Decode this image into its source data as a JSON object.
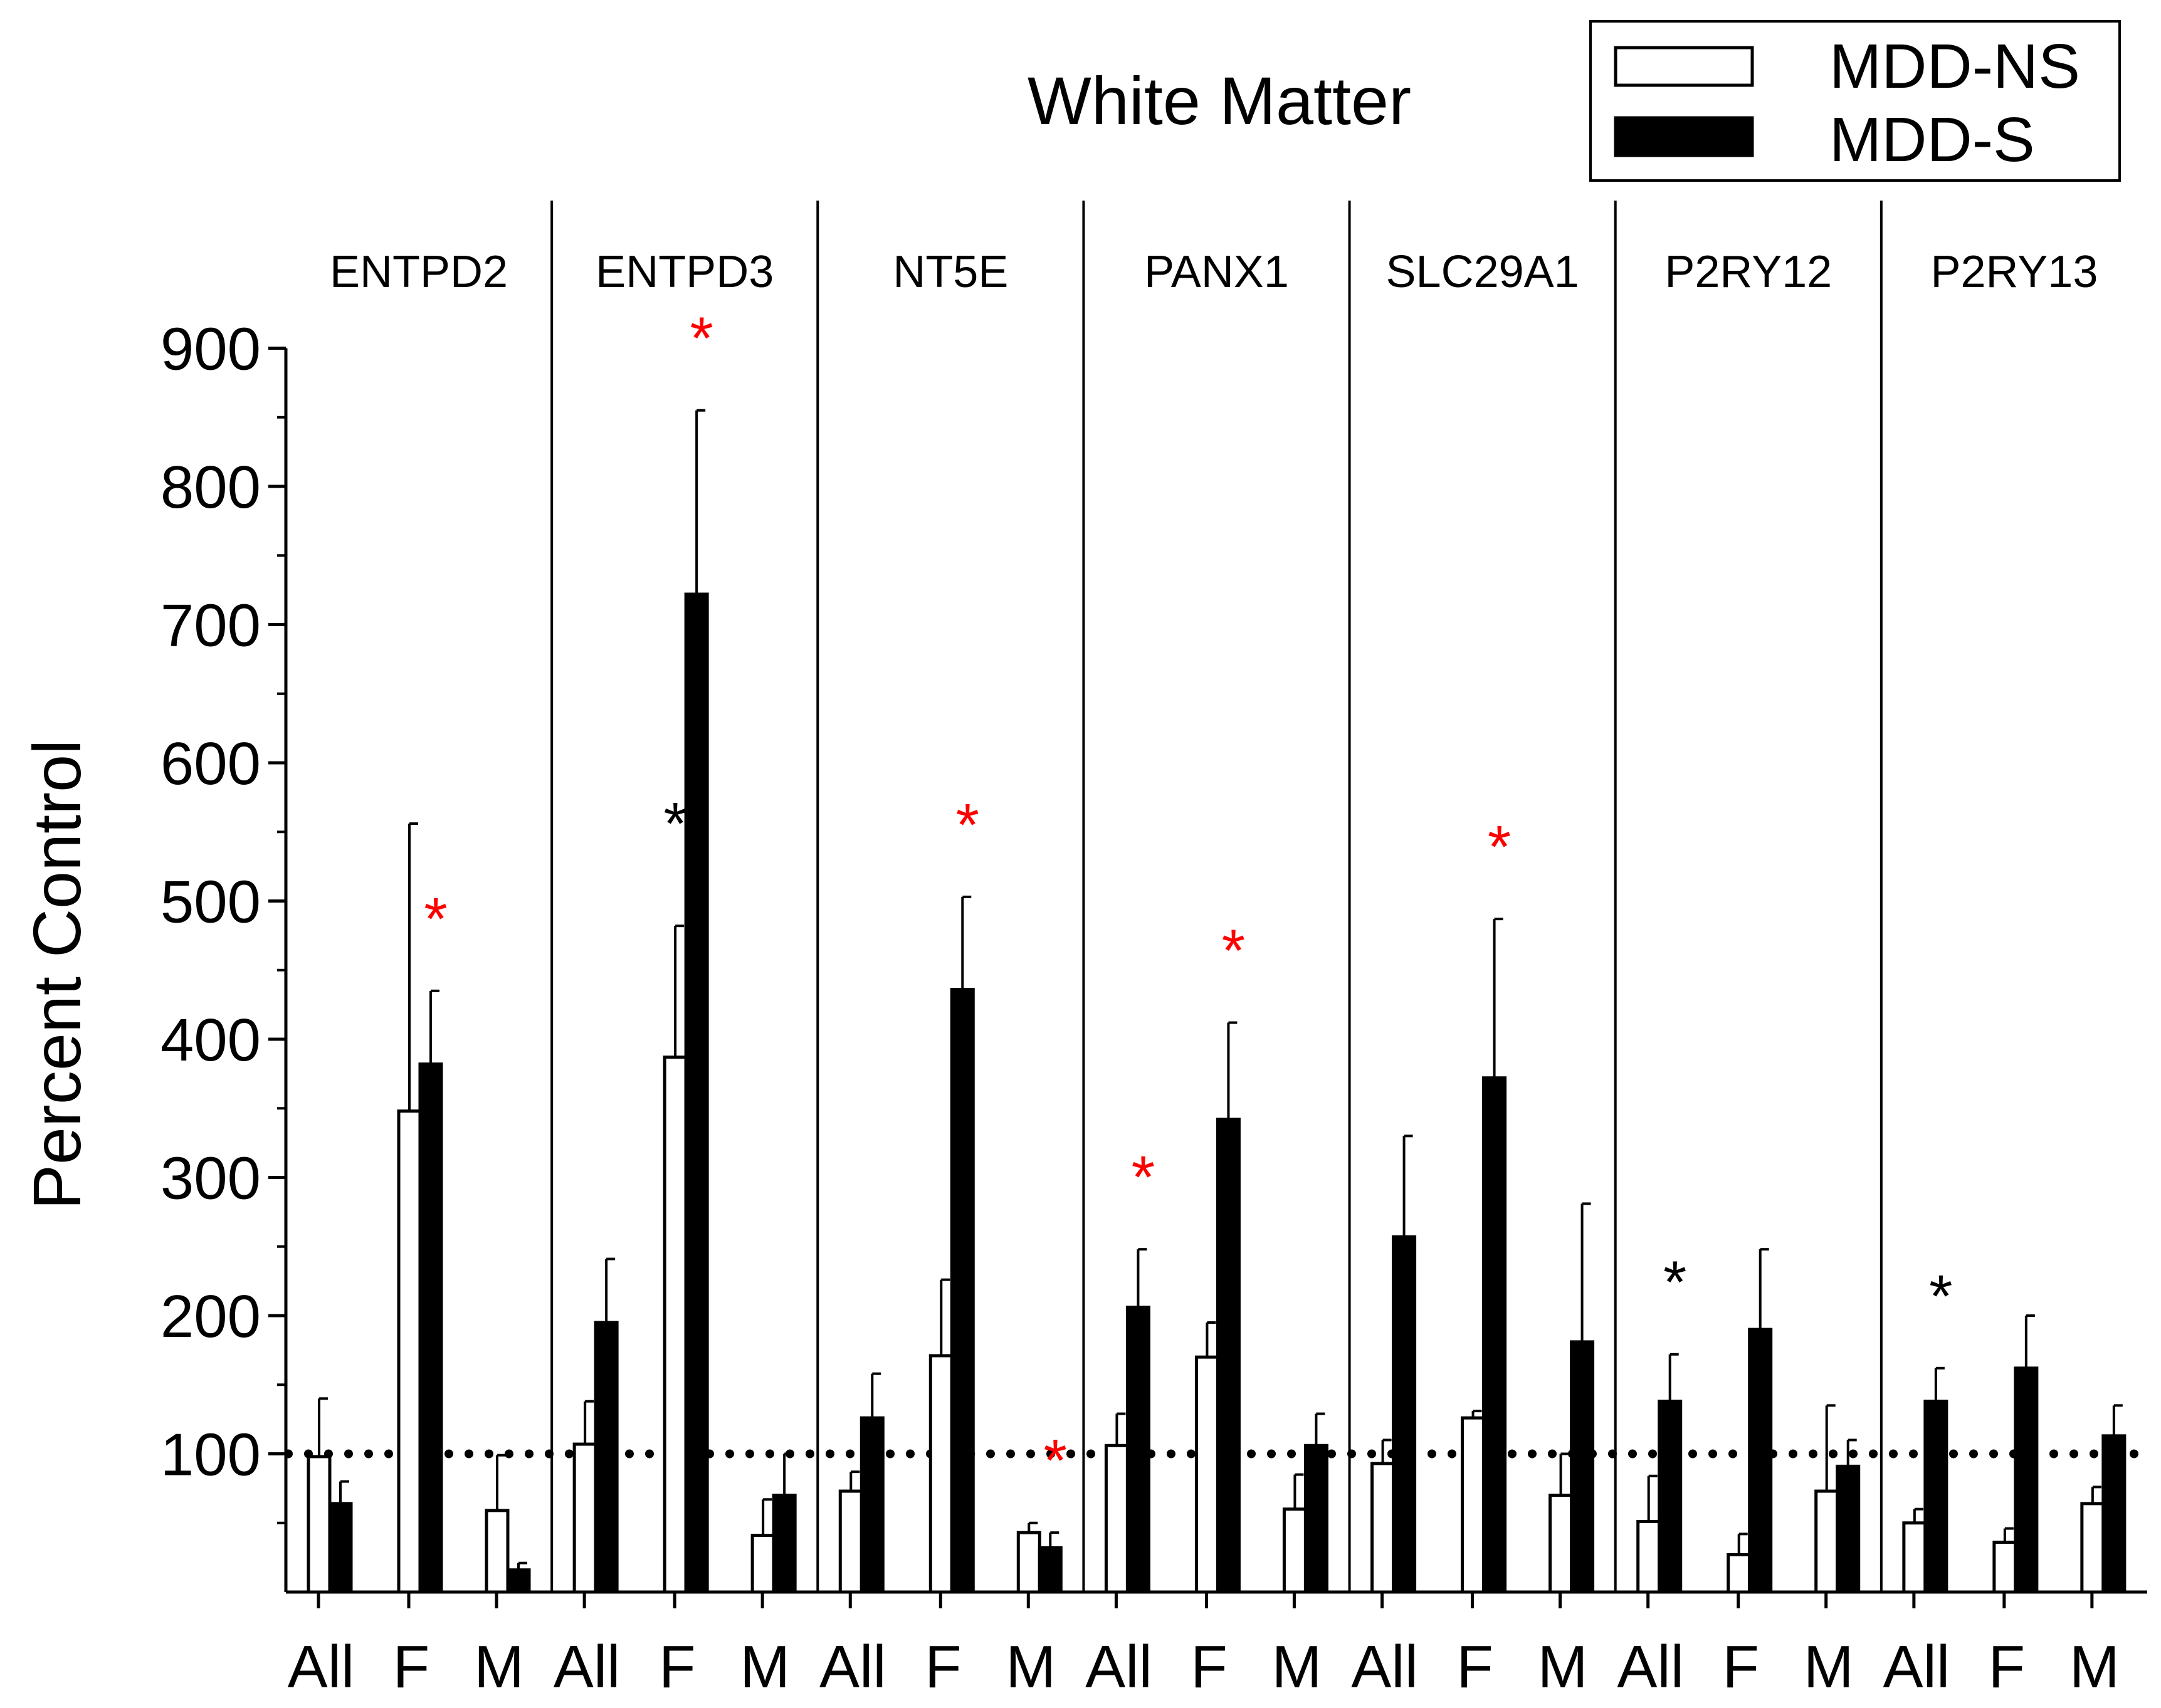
{
  "chart_data": {
    "type": "bar",
    "title": "White Matter",
    "ylabel": "Percent Control",
    "xlabel": "",
    "ylim": [
      0,
      900
    ],
    "yticks": [
      100,
      200,
      300,
      400,
      500,
      600,
      700,
      800,
      900
    ],
    "reference_line": 100,
    "legend": {
      "placement": "top-right",
      "entries": [
        {
          "name": "MDD-NS",
          "fill": "#ffffff"
        },
        {
          "name": "MDD-S",
          "fill": "#000000"
        }
      ]
    },
    "subgroups": [
      "All",
      "F",
      "M"
    ],
    "series_names": [
      "MDD-NS",
      "MDD-S"
    ],
    "panels": [
      {
        "name": "ENTPD2",
        "groups": [
          {
            "label": "All",
            "ns": 98,
            "ns_err": 42,
            "s": 64,
            "s_err": 16,
            "ns_star": null,
            "s_star": null
          },
          {
            "label": "F",
            "ns": 348,
            "ns_err": 208,
            "s": 382,
            "s_err": 53,
            "ns_star": null,
            "s_star": "red"
          },
          {
            "label": "M",
            "ns": 59,
            "ns_err": 40,
            "s": 16,
            "s_err": 5,
            "ns_star": null,
            "s_star": null
          }
        ]
      },
      {
        "name": "ENTPD3",
        "groups": [
          {
            "label": "All",
            "ns": 107,
            "ns_err": 31,
            "s": 195,
            "s_err": 46,
            "ns_star": null,
            "s_star": null
          },
          {
            "label": "F",
            "ns": 387,
            "ns_err": 95,
            "s": 722,
            "s_err": 133,
            "ns_star": "black",
            "s_star": "red"
          },
          {
            "label": "M",
            "ns": 41,
            "ns_err": 26,
            "s": 70,
            "s_err": 30,
            "ns_star": null,
            "s_star": null
          }
        ]
      },
      {
        "name": "NT5E",
        "groups": [
          {
            "label": "All",
            "ns": 73,
            "ns_err": 14,
            "s": 126,
            "s_err": 32,
            "ns_star": null,
            "s_star": null
          },
          {
            "label": "F",
            "ns": 171,
            "ns_err": 55,
            "s": 436,
            "s_err": 67,
            "ns_star": null,
            "s_star": "red"
          },
          {
            "label": "M",
            "ns": 43,
            "ns_err": 7,
            "s": 32,
            "s_err": 11,
            "ns_star": null,
            "s_star": "red"
          }
        ]
      },
      {
        "name": "PANX1",
        "groups": [
          {
            "label": "All",
            "ns": 106,
            "ns_err": 23,
            "s": 206,
            "s_err": 42,
            "ns_star": null,
            "s_star": "red"
          },
          {
            "label": "F",
            "ns": 170,
            "ns_err": 25,
            "s": 342,
            "s_err": 70,
            "ns_star": null,
            "s_star": "red"
          },
          {
            "label": "M",
            "ns": 60,
            "ns_err": 25,
            "s": 106,
            "s_err": 23,
            "ns_star": null,
            "s_star": null
          }
        ]
      },
      {
        "name": "SLC29A1",
        "groups": [
          {
            "label": "All",
            "ns": 93,
            "ns_err": 17,
            "s": 257,
            "s_err": 73,
            "ns_star": null,
            "s_star": null
          },
          {
            "label": "F",
            "ns": 126,
            "ns_err": 5,
            "s": 372,
            "s_err": 115,
            "ns_star": null,
            "s_star": "red"
          },
          {
            "label": "M",
            "ns": 70,
            "ns_err": 30,
            "s": 181,
            "s_err": 100,
            "ns_star": null,
            "s_star": null
          }
        ]
      },
      {
        "name": "P2RY12",
        "groups": [
          {
            "label": "All",
            "ns": 51,
            "ns_err": 33,
            "s": 138,
            "s_err": 34,
            "ns_star": null,
            "s_star": "black"
          },
          {
            "label": "F",
            "ns": 27,
            "ns_err": 15,
            "s": 190,
            "s_err": 58,
            "ns_star": null,
            "s_star": null
          },
          {
            "label": "M",
            "ns": 73,
            "ns_err": 62,
            "s": 91,
            "s_err": 19,
            "ns_star": null,
            "s_star": null
          }
        ]
      },
      {
        "name": "P2RY13",
        "groups": [
          {
            "label": "All",
            "ns": 50,
            "ns_err": 10,
            "s": 138,
            "s_err": 24,
            "ns_star": null,
            "s_star": "black"
          },
          {
            "label": "F",
            "ns": 36,
            "ns_err": 10,
            "s": 162,
            "s_err": 38,
            "ns_star": null,
            "s_star": null
          },
          {
            "label": "M",
            "ns": 64,
            "ns_err": 12,
            "s": 113,
            "s_err": 22,
            "ns_star": null,
            "s_star": null
          }
        ]
      }
    ]
  }
}
